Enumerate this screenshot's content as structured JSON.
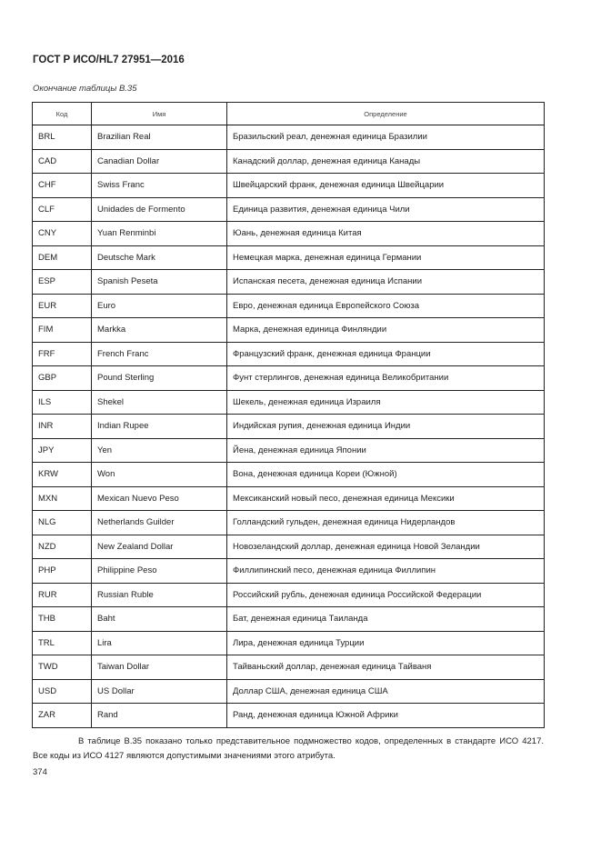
{
  "header": "ГОСТ Р ИСО/HL7 27951—2016",
  "caption": "Окончание таблицы В.35",
  "table": {
    "columns": [
      "Код",
      "Имя",
      "Определение"
    ],
    "rows": [
      [
        "BRL",
        "Brazilian Real",
        "Бразильский реал, денежная единица Бразилии"
      ],
      [
        "CAD",
        "Canadian Dollar",
        "Канадский доллар, денежная единица Канады"
      ],
      [
        "CHF",
        "Swiss Franc",
        "Швейцарский франк, денежная единица Швейцарии"
      ],
      [
        "CLF",
        "Unidades de Formento",
        "Единица развития, денежная единица Чили"
      ],
      [
        "CNY",
        "Yuan Renminbi",
        "Юань, денежная единица Китая"
      ],
      [
        "DEM",
        "Deutsche Mark",
        "Немецкая марка, денежная единица Германии"
      ],
      [
        "ESP",
        "Spanish Peseta",
        "Испанская песета, денежная единица Испании"
      ],
      [
        "EUR",
        "Euro",
        "Евро, денежная единица Европейского Союза"
      ],
      [
        "FIM",
        "Markka",
        "Марка, денежная единица Финляндии"
      ],
      [
        "FRF",
        "French Franc",
        "Французский франк, денежная единица Франции"
      ],
      [
        "GBP",
        "Pound Sterling",
        "Фунт стерлингов, денежная единица Великобритании"
      ],
      [
        "ILS",
        "Shekel",
        "Шекель, денежная единица Израиля"
      ],
      [
        "INR",
        "Indian Rupee",
        "Индийская рупия, денежная единица Индии"
      ],
      [
        "JPY",
        "Yen",
        "Йена, денежная единица Японии"
      ],
      [
        "KRW",
        "Won",
        "Вона, денежная единица Кореи (Южной)"
      ],
      [
        "MXN",
        "Mexican Nuevo Peso",
        "Мексиканский новый песо, денежная единица Мексики"
      ],
      [
        "NLG",
        "Netherlands Guilder",
        "Голландский гульден, денежная единица Нидерландов"
      ],
      [
        "NZD",
        "New Zealand Dollar",
        "Новозеландский доллар, денежная единица Новой Зеландии"
      ],
      [
        "PHP",
        "Philippine Peso",
        "Филлипинский песо, денежная единица Филлипин"
      ],
      [
        "RUR",
        "Russian Ruble",
        "Российский рубль, денежная единица Российской Федерации"
      ],
      [
        "THB",
        "Baht",
        "Бат, денежная единица Таиланда"
      ],
      [
        "TRL",
        "Lira",
        "Лира, денежная единица Турции"
      ],
      [
        "TWD",
        "Taiwan Dollar",
        "Тайваньский доллар, денежная единица Тайваня"
      ],
      [
        "USD",
        "US Dollar",
        "Доллар США, денежная единица США"
      ],
      [
        "ZAR",
        "Rand",
        "Ранд, денежная единица Южной Африки"
      ]
    ]
  },
  "note": "В таблице В.35 показано только представительное подмножество кодов, определенных в стандарте ИСО 4217. Все коды из ИСО 4127 являются допустимыми значениями этого атрибута.",
  "page_number": "374"
}
